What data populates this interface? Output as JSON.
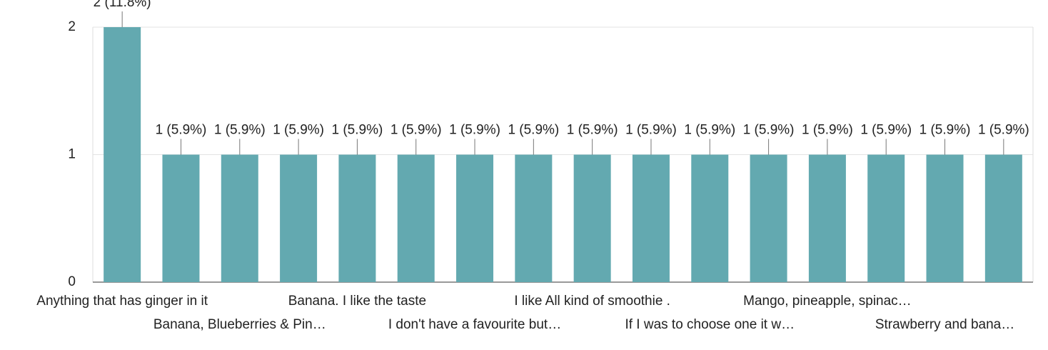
{
  "chart_data": {
    "type": "bar",
    "categories": [
      "Anything that has ginger in it",
      null,
      "Banana, Blueberries & Pin…",
      null,
      "Banana. I like the taste",
      null,
      "I don't have a favourite but…",
      null,
      "I like All kind of smoothie .",
      null,
      "If I was to choose one it w…",
      null,
      "Mango, pineapple, spinac…",
      null,
      "Strawberry and bana…",
      null
    ],
    "values": [
      2,
      1,
      1,
      1,
      1,
      1,
      1,
      1,
      1,
      1,
      1,
      1,
      1,
      1,
      1,
      1
    ],
    "value_labels": [
      "2 (11.8%)",
      "1 (5.9%)",
      "1 (5.9%)",
      "1 (5.9%)",
      "1 (5.9%)",
      "1 (5.9%)",
      "1 (5.9%)",
      "1 (5.9%)",
      "1 (5.9%)",
      "1 (5.9%)",
      "1 (5.9%)",
      "1 (5.9%)",
      "1 (5.9%)",
      "1 (5.9%)",
      "1 (5.9%)",
      "1 (5.9%)"
    ],
    "color": "#63a9b0",
    "ylim": [
      0,
      2
    ],
    "yticks": [
      0,
      1,
      2
    ],
    "grid": true
  }
}
